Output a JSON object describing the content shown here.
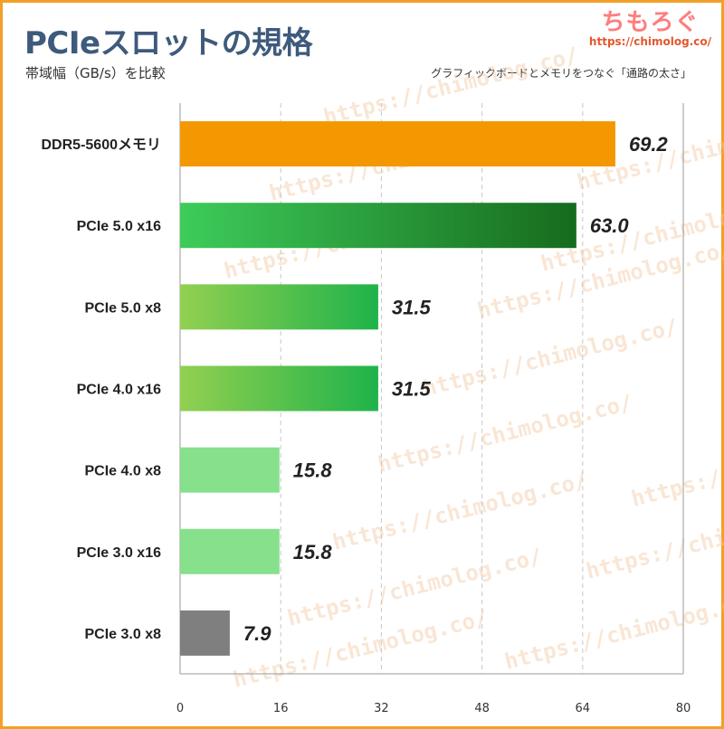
{
  "header": {
    "title": "PCIeスロットの規格",
    "subtitle": "帯域幅（GB/s）を比較",
    "note": "グラフィックボードとメモリをつなぐ「通路の太さ」"
  },
  "logo": {
    "title": "ちもろぐ",
    "url": "https://chimolog.co/"
  },
  "watermark": "https://chimolog.co/",
  "chart_data": {
    "type": "bar",
    "orientation": "horizontal",
    "categories": [
      "DDR5-5600メモリ",
      "PCIe 5.0 x16",
      "PCIe 5.0 x8",
      "PCIe 4.0 x16",
      "PCIe 4.0 x8",
      "PCIe 3.0 x16",
      "PCIe 3.0 x8"
    ],
    "values": [
      69.2,
      63.0,
      31.5,
      31.5,
      15.8,
      15.8,
      7.9
    ],
    "value_labels": [
      "69.2",
      "63.0",
      "31.5",
      "31.5",
      "15.8",
      "15.8",
      "7.9"
    ],
    "title": "PCIeスロットの規格",
    "xlabel": "",
    "ylabel": "",
    "xlim": [
      0,
      80
    ],
    "xticks": [
      0,
      16,
      32,
      48,
      64,
      80
    ],
    "grid": true,
    "legend": "none",
    "bar_colors": [
      [
        "#f39800",
        "#f39800"
      ],
      [
        "#3ecc5a",
        "#166b1d"
      ],
      [
        "#92d050",
        "#1fb34a"
      ],
      [
        "#92d050",
        "#1fb34a"
      ],
      [
        "#86e08c",
        "#86e08c"
      ],
      [
        "#86e08c",
        "#86e08c"
      ],
      [
        "#7f7f7f",
        "#7f7f7f"
      ]
    ]
  }
}
